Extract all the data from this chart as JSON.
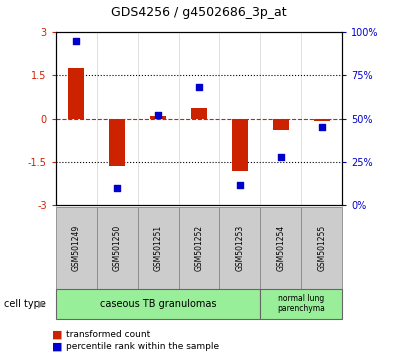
{
  "title": "GDS4256 / g4502686_3p_at",
  "samples": [
    "GSM501249",
    "GSM501250",
    "GSM501251",
    "GSM501252",
    "GSM501253",
    "GSM501254",
    "GSM501255"
  ],
  "red_bars": [
    1.75,
    -1.65,
    0.1,
    0.35,
    -1.8,
    -0.4,
    -0.08
  ],
  "blue_dots_pct": [
    95,
    10,
    52,
    68,
    12,
    28,
    45
  ],
  "ylim_left": [
    -3,
    3
  ],
  "yticks_left": [
    -3,
    -1.5,
    0,
    1.5,
    3
  ],
  "ytick_labels_left": [
    "-3",
    "-1.5",
    "0",
    "1.5",
    "3"
  ],
  "ytick_labels_right": [
    "0%",
    "25%",
    "50%",
    "75%",
    "100%"
  ],
  "yticks_right_pct": [
    0,
    25,
    50,
    75,
    100
  ],
  "bar_color": "#cc2200",
  "dot_color": "#0000cc",
  "hline_color": "#cc2200",
  "cell_type_color": "#99ee99",
  "xtick_box_color": "#cccccc",
  "label_bar": "transformed count",
  "label_dot": "percentile rank within the sample",
  "cell_type_label": "cell type",
  "cell_groups": [
    {
      "label": "caseous TB granulomas",
      "start": 0,
      "end": 4
    },
    {
      "label": "normal lung\nparenchyma",
      "start": 5,
      "end": 6
    }
  ]
}
